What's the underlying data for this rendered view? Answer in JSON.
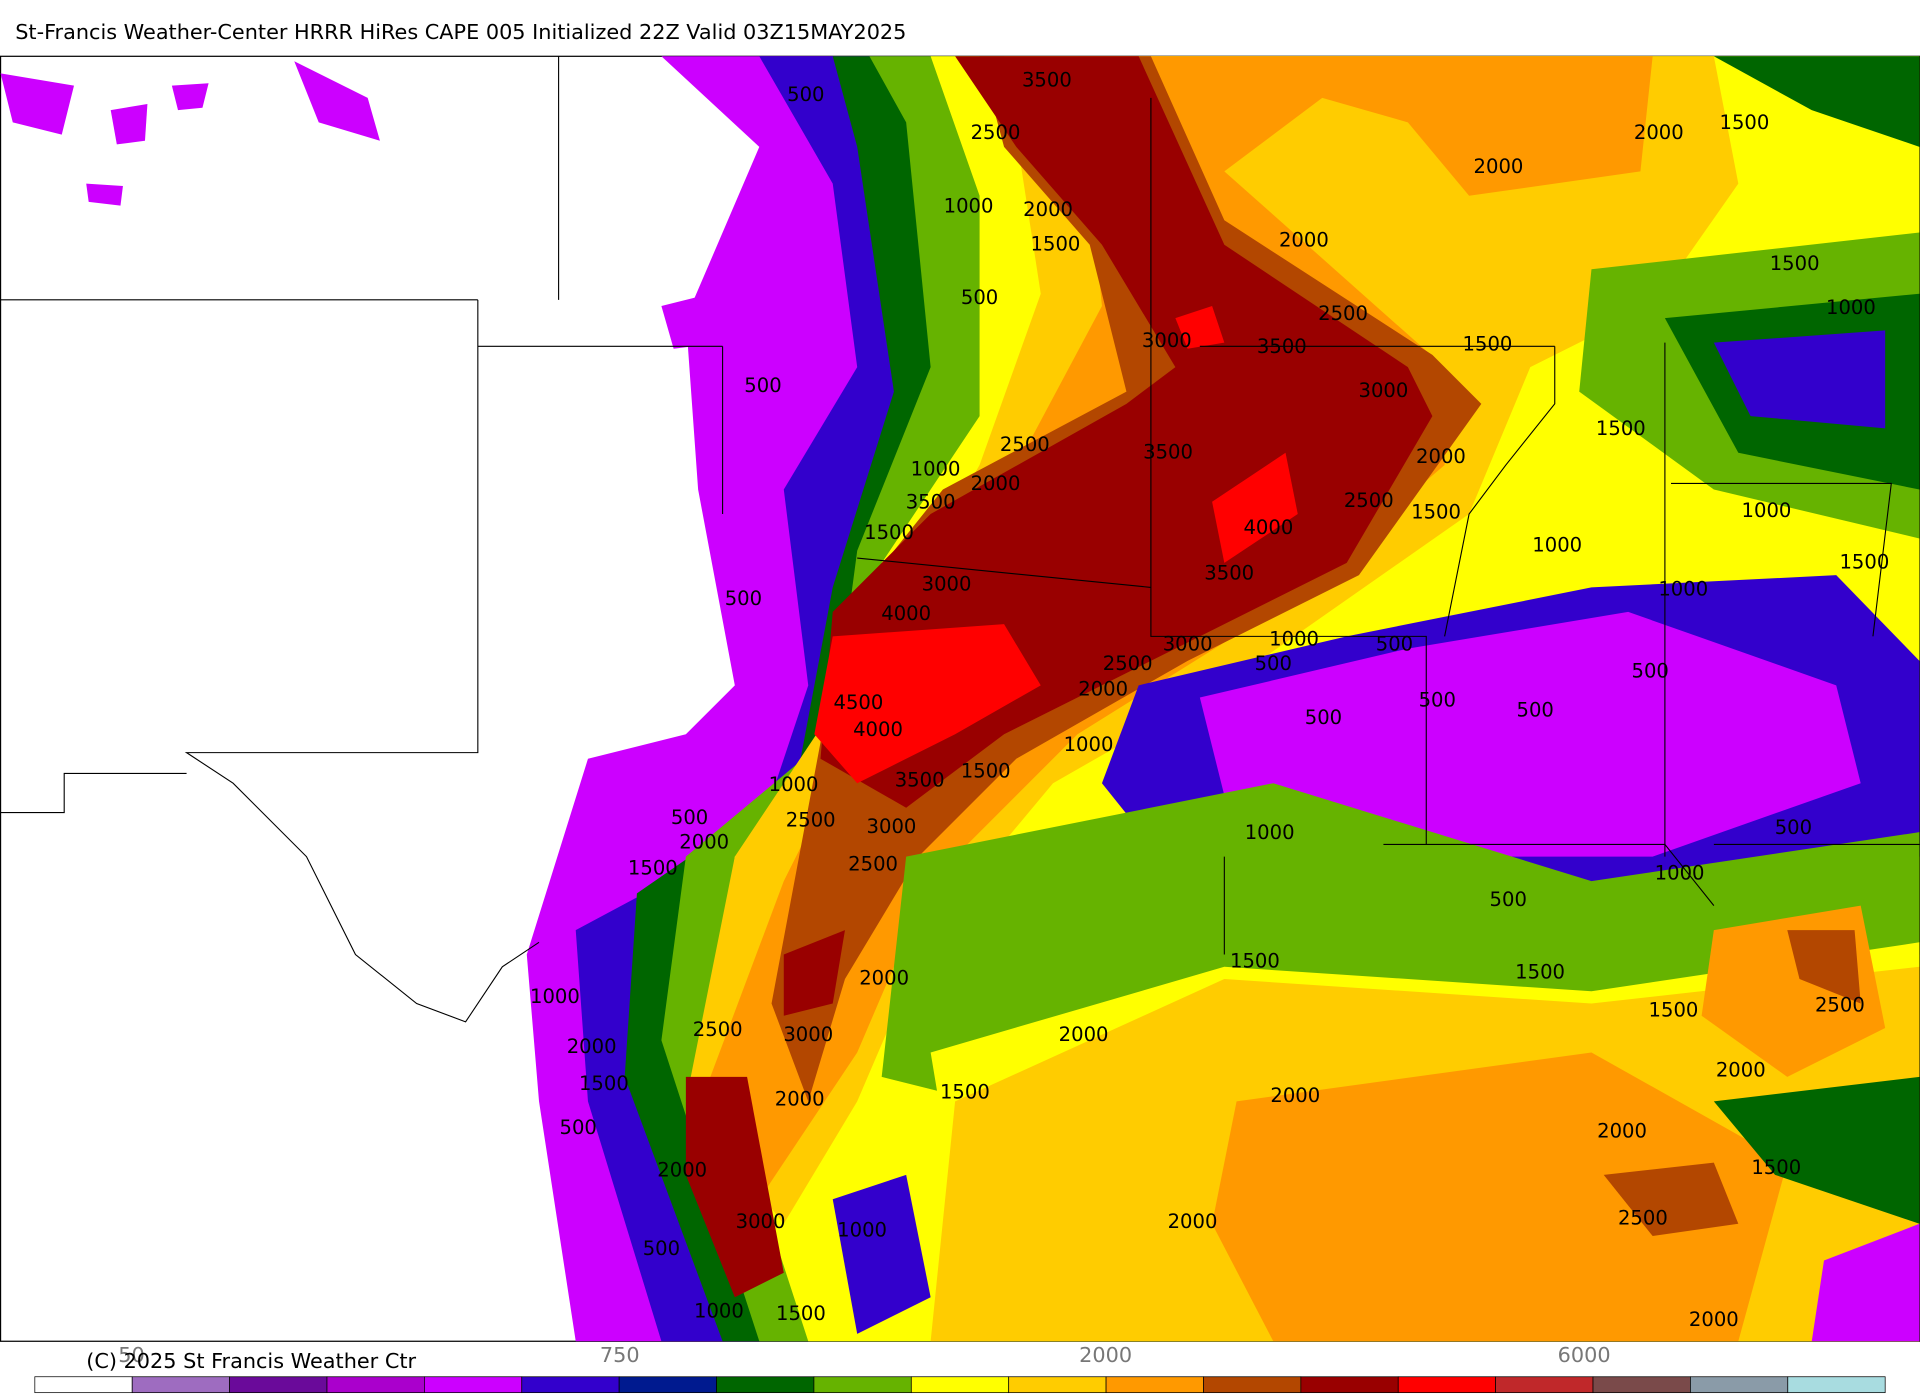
{
  "header": {
    "title": "St-Francis Weather-Center HRRR HiRes CAPE  005 Initialized  22Z Valid 03Z15MAY2025"
  },
  "map": {
    "contour_labels": [
      "500",
      "3500",
      "2500",
      "2000",
      "1500",
      "2000",
      "1000",
      "2000",
      "1500",
      "2000",
      "1500",
      "500",
      "2500",
      "1000",
      "3000",
      "3500",
      "1500",
      "500",
      "3000",
      "1500",
      "2500",
      "3500",
      "2000",
      "1000",
      "2000",
      "3500",
      "2500",
      "1500",
      "1000",
      "1500",
      "4000",
      "1000",
      "1500",
      "3000",
      "3500",
      "1000",
      "500",
      "4000",
      "3000",
      "1000",
      "500",
      "2500",
      "500",
      "500",
      "2000",
      "500",
      "500",
      "500",
      "4500",
      "4000",
      "1000",
      "1500",
      "3500",
      "1000",
      "500",
      "2500",
      "3000",
      "500",
      "2000",
      "1000",
      "1500",
      "2500",
      "1000",
      "500",
      "1500",
      "2000",
      "1500",
      "1000",
      "1500",
      "2500",
      "2000",
      "2500",
      "3000",
      "2000",
      "2000",
      "1500",
      "1500",
      "2000",
      "500",
      "2000",
      "2000",
      "2000",
      "1500",
      "3000",
      "1000",
      "2000",
      "2500",
      "500",
      "1000",
      "1500",
      "2000"
    ]
  },
  "colorbar": {
    "colors": [
      "#ffffff",
      "#9e6cc0",
      "#6a0a9a",
      "#aa00cc",
      "#cc00ff",
      "#3300cc",
      "#001a8f",
      "#006600",
      "#66b300",
      "#ffff00",
      "#ffcc00",
      "#ff9900",
      "#b34700",
      "#990000",
      "#ff0000",
      "#c0282a",
      "#7a4a4a",
      "#8a9ba8",
      "#a8dce0"
    ],
    "labels": [
      "50",
      "750",
      "2000",
      "6000"
    ]
  },
  "footer": {
    "copyright": "(C) 2025 St Francis Weather Ctr"
  }
}
